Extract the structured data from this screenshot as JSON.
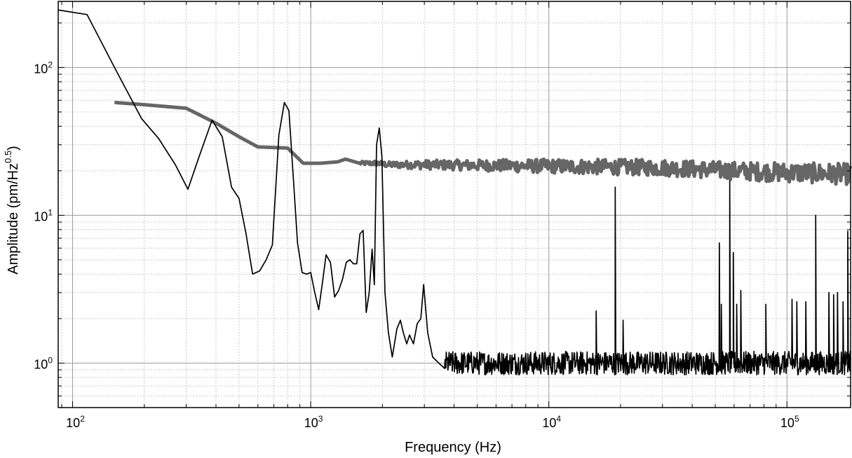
{
  "chart_data": {
    "type": "line",
    "xscale": "log",
    "yscale": "log",
    "xlim": [
      87,
      185000
    ],
    "ylim": [
      0.5,
      280
    ],
    "grid": true,
    "grid_minor": true,
    "title": "",
    "xlabel": "Frequency (Hz)",
    "ylabel": {
      "main": "Amplitude (pm/Hz",
      "exponent": "0.5",
      "suffix": ")"
    },
    "x_ticks": [
      {
        "value": 100,
        "base": "10",
        "exp": "2"
      },
      {
        "value": 1000,
        "base": "10",
        "exp": "3"
      },
      {
        "value": 10000,
        "base": "10",
        "exp": "4"
      },
      {
        "value": 100000,
        "base": "10",
        "exp": "5"
      }
    ],
    "y_ticks": [
      {
        "value": 1,
        "base": "10",
        "exp": "0"
      },
      {
        "value": 10,
        "base": "10",
        "exp": "1"
      },
      {
        "value": 100,
        "base": "10",
        "exp": "2"
      }
    ],
    "colors": {
      "series_1": "#000000",
      "series_2": "#666666",
      "grid_major": "#9a9a9a",
      "grid_minor": "#c4c4c4"
    },
    "series": [
      {
        "color": "#000000",
        "points": [
          [
            87,
            245
          ],
          [
            115,
            228
          ],
          [
            150,
            100
          ],
          [
            195,
            45
          ],
          [
            230,
            33
          ],
          [
            270,
            22
          ],
          [
            305,
            15
          ],
          [
            340,
            25
          ],
          [
            385,
            44
          ],
          [
            425,
            34
          ],
          [
            465,
            15.5
          ],
          [
            500,
            13
          ],
          [
            535,
            7.5
          ],
          [
            570,
            4.0
          ],
          [
            610,
            4.2
          ],
          [
            650,
            5
          ],
          [
            690,
            6.3
          ],
          [
            735,
            35
          ],
          [
            775,
            58
          ],
          [
            810,
            51
          ],
          [
            845,
            18
          ],
          [
            880,
            6.5
          ],
          [
            920,
            4.1
          ],
          [
            960,
            4.0
          ],
          [
            1000,
            4.1
          ],
          [
            1040,
            3.0
          ],
          [
            1080,
            2.3
          ],
          [
            1120,
            3.5
          ],
          [
            1160,
            5.4
          ],
          [
            1210,
            4.8
          ],
          [
            1260,
            2.8
          ],
          [
            1310,
            3.1
          ],
          [
            1360,
            3.7
          ],
          [
            1410,
            4.8
          ],
          [
            1460,
            5.0
          ],
          [
            1510,
            4.7
          ],
          [
            1560,
            4.7
          ],
          [
            1610,
            7.5
          ],
          [
            1660,
            7.9
          ],
          [
            1710,
            2.2
          ],
          [
            1760,
            3.0
          ],
          [
            1810,
            5.9
          ],
          [
            1850,
            3.4
          ],
          [
            1890,
            30
          ],
          [
            1940,
            39
          ],
          [
            1990,
            25
          ],
          [
            2050,
            3.0
          ],
          [
            2120,
            1.6
          ],
          [
            2200,
            1.1
          ],
          [
            2300,
            1.7
          ],
          [
            2380,
            1.95
          ],
          [
            2450,
            1.6
          ],
          [
            2530,
            1.35
          ],
          [
            2600,
            1.55
          ],
          [
            2700,
            1.35
          ],
          [
            2800,
            1.85
          ],
          [
            2900,
            2.0
          ],
          [
            2980,
            3.4
          ],
          [
            3100,
            1.6
          ],
          [
            3250,
            1.1
          ],
          [
            3450,
            1.0
          ],
          [
            3650,
            0.92
          ]
        ],
        "noise_floor": {
          "from": 3650,
          "to": 185000,
          "level": 1.0,
          "spread": 0.08
        },
        "spikes": [
          [
            15800,
            2.25
          ],
          [
            19000,
            15.5
          ],
          [
            20500,
            1.95
          ],
          [
            52000,
            6.5
          ],
          [
            53000,
            2.5
          ],
          [
            57500,
            17
          ],
          [
            59500,
            5.6
          ],
          [
            61500,
            2.5
          ],
          [
            64000,
            3.1
          ],
          [
            81500,
            2.5
          ],
          [
            105000,
            2.7
          ],
          [
            110000,
            2.6
          ],
          [
            120000,
            2.6
          ],
          [
            132000,
            10
          ],
          [
            150000,
            3.0
          ],
          [
            157000,
            2.9
          ],
          [
            163000,
            3.0
          ],
          [
            172000,
            2.6
          ],
          [
            180000,
            7.8
          ]
        ]
      },
      {
        "color": "#666666",
        "points": [
          [
            150,
            58
          ],
          [
            200,
            56
          ],
          [
            300,
            53
          ],
          [
            400,
            42
          ],
          [
            500,
            34
          ],
          [
            600,
            29
          ],
          [
            800,
            28.5
          ],
          [
            930,
            22.5
          ],
          [
            1100,
            22.5
          ],
          [
            1300,
            23
          ],
          [
            1400,
            24
          ],
          [
            1600,
            22.5
          ],
          [
            1900,
            22.5
          ],
          [
            2100,
            22
          ],
          [
            3000,
            22
          ],
          [
            10000,
            21.5
          ],
          [
            30000,
            21
          ],
          [
            60000,
            20
          ],
          [
            100000,
            19.5
          ],
          [
            185000,
            19
          ]
        ],
        "band": [
          {
            "x": 1600,
            "spread": 0.02
          },
          {
            "x": 3000,
            "spread": 0.05
          },
          {
            "x": 10000,
            "spread": 0.08
          },
          {
            "x": 50000,
            "spread": 0.1
          },
          {
            "x": 185000,
            "spread": 0.12
          }
        ]
      }
    ]
  }
}
